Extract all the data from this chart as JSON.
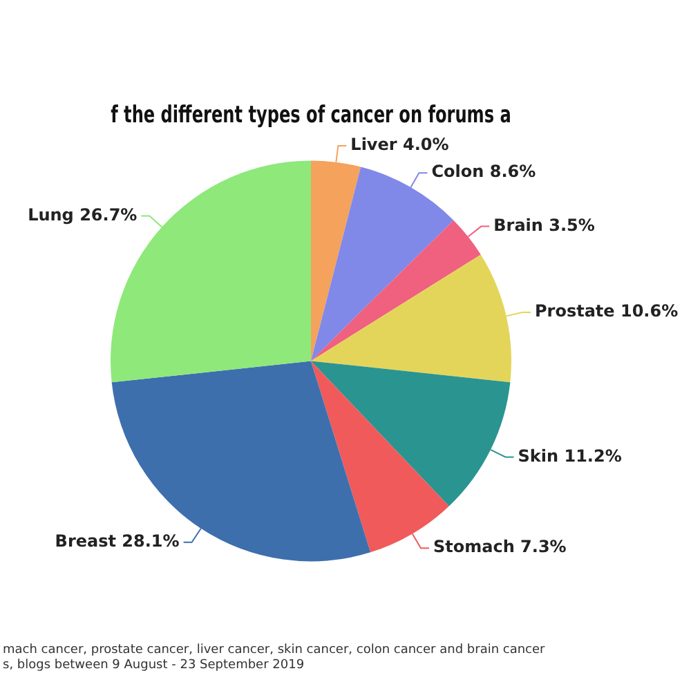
{
  "chart_data": {
    "type": "pie",
    "title": "f the different types of cancer on forums a",
    "categories": [
      "Liver",
      "Colon",
      "Brain",
      "Prostate",
      "Skin",
      "Stomach",
      "Breast",
      "Lung"
    ],
    "values": [
      4.0,
      8.6,
      3.5,
      10.6,
      11.2,
      7.3,
      28.1,
      26.7
    ],
    "value_labels": [
      "4.0%",
      "8.6%",
      "3.5%",
      "10.6%",
      "11.2%",
      "7.3%",
      "28.1%",
      "26.7%"
    ],
    "colors": [
      "#f5a25d",
      "#8088e8",
      "#f0607f",
      "#e3d55a",
      "#2a9490",
      "#f05a5a",
      "#3d6fad",
      "#8ee87a"
    ],
    "legend": false,
    "annotations": [
      "mach cancer, prostate cancer, liver cancer, skin cancer, colon cancer and brain cancer",
      "s, blogs between 9 August - 23 September 2019"
    ]
  }
}
